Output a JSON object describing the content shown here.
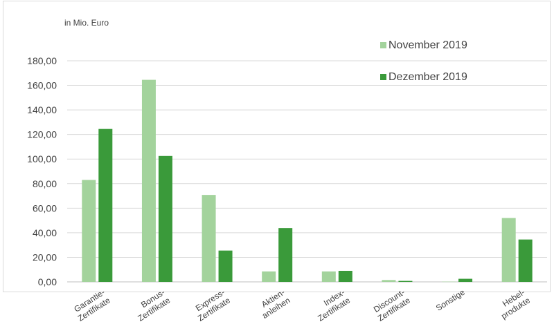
{
  "chart_data": {
    "type": "bar",
    "unit_label": "in Mio. Euro",
    "categories": [
      [
        "Garantie-",
        "Zertifikate"
      ],
      [
        "Bonus-",
        "Zertifikate"
      ],
      [
        "Express-",
        "Zertifikate"
      ],
      [
        "Aktien-",
        "anleihen"
      ],
      [
        "Index-",
        "Zertifikate"
      ],
      [
        "Discount-",
        "Zertifikate"
      ],
      [
        "Sonstige"
      ],
      [
        "Hebel-",
        "produkte"
      ]
    ],
    "series": [
      {
        "name": "November 2019",
        "color": "#a3d39c",
        "values": [
          83.0,
          164.5,
          70.8,
          8.5,
          8.5,
          1.5,
          0.2,
          52.0
        ]
      },
      {
        "name": "Dezember 2019",
        "color": "#3a9a3a",
        "values": [
          124.5,
          102.5,
          25.5,
          43.8,
          9.0,
          0.8,
          2.5,
          34.5
        ]
      }
    ],
    "y_ticks": [
      "0,00",
      "20,00",
      "40,00",
      "60,00",
      "80,00",
      "100,00",
      "120,00",
      "140,00",
      "160,00",
      "180,00"
    ],
    "ylim": [
      0,
      180
    ],
    "grid": true,
    "legend_position": "top-right"
  }
}
